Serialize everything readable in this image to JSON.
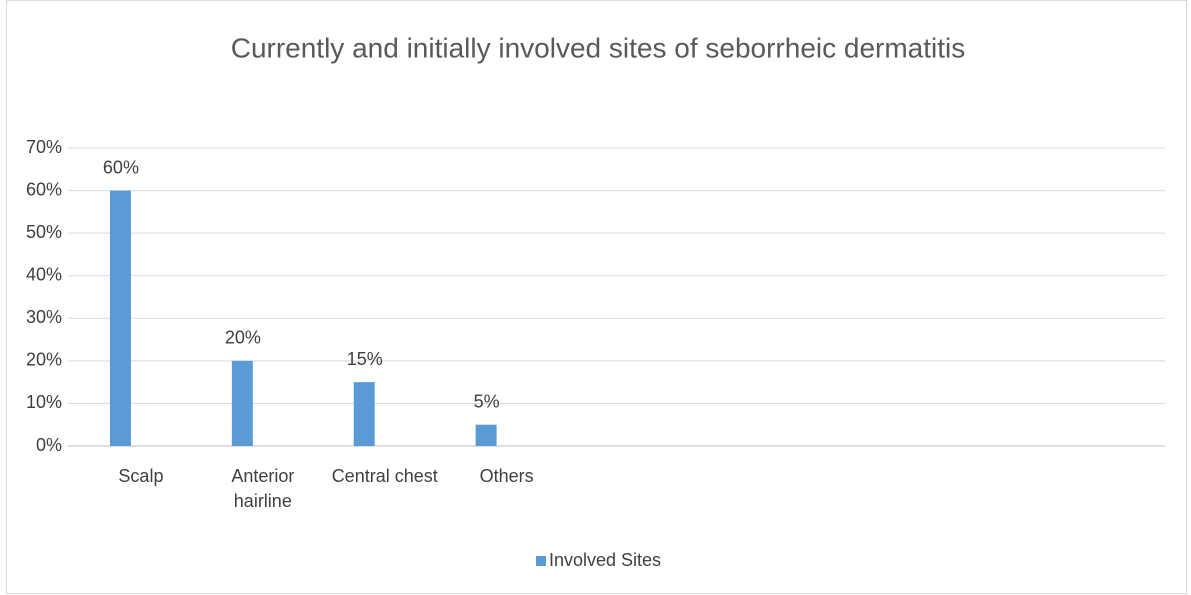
{
  "chart_data": {
    "type": "bar",
    "title": "Currently and initially involved sites of seborrheic dermatitis",
    "categories": [
      "Scalp",
      "Anterior hairline",
      "Central chest",
      "Others",
      null,
      null,
      null,
      null,
      null
    ],
    "series": [
      {
        "name": "Involved Sites",
        "color": "#5b9bd5",
        "values": [
          60,
          20,
          15,
          5,
          null,
          null,
          null,
          null,
          null
        ],
        "value_labels": [
          "60%",
          "20%",
          "15%",
          "5%",
          null,
          null,
          null,
          null,
          null
        ]
      }
    ],
    "ylim": [
      0,
      70
    ],
    "yticks": [
      {
        "value": 0,
        "label": "0%"
      },
      {
        "value": 10,
        "label": "10%"
      },
      {
        "value": 20,
        "label": "20%"
      },
      {
        "value": 30,
        "label": "30%"
      },
      {
        "value": 40,
        "label": "40%"
      },
      {
        "value": 50,
        "label": "50%"
      },
      {
        "value": 60,
        "label": "60%"
      },
      {
        "value": 70,
        "label": "70%"
      }
    ],
    "grid": true,
    "legend": "bottom"
  }
}
